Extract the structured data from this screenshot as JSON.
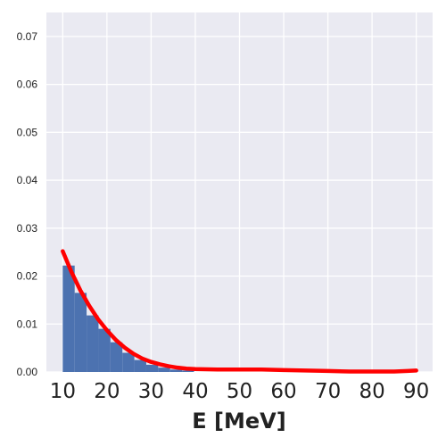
{
  "chart_data": {
    "type": "bar",
    "title": "",
    "xlabel": "E [MeV]",
    "ylabel": "",
    "xlim": [
      6.3,
      93.7
    ],
    "ylim": [
      0,
      0.075
    ],
    "grid": true,
    "background": "#EAEAF2",
    "gridColor": "#FFFFFF",
    "xticks": [
      "10",
      "20",
      "30",
      "40",
      "50",
      "60",
      "70",
      "80",
      "90"
    ],
    "yticks": [
      "0.00",
      "0.01",
      "0.02",
      "0.03",
      "0.04",
      "0.05",
      "0.06",
      "0.07"
    ],
    "histogram": {
      "color": "#4C72B0",
      "bins": [
        {
          "x0": 10.0,
          "x1": 12.7,
          "value": 0.0222
        },
        {
          "x0": 12.7,
          "x1": 15.4,
          "value": 0.0165
        },
        {
          "x0": 15.4,
          "x1": 18.1,
          "value": 0.0118
        },
        {
          "x0": 18.1,
          "x1": 20.8,
          "value": 0.009
        },
        {
          "x0": 20.8,
          "x1": 23.5,
          "value": 0.0062
        },
        {
          "x0": 23.5,
          "x1": 26.2,
          "value": 0.004
        },
        {
          "x0": 26.2,
          "x1": 28.9,
          "value": 0.0025
        },
        {
          "x0": 28.9,
          "x1": 31.6,
          "value": 0.0015
        },
        {
          "x0": 31.6,
          "x1": 34.3,
          "value": 0.0009
        },
        {
          "x0": 34.3,
          "x1": 37.0,
          "value": 0.0005
        },
        {
          "x0": 37.0,
          "x1": 39.7,
          "value": 0.0003
        }
      ]
    },
    "curve": {
      "color": "#FF0000",
      "points": [
        [
          10,
          0.0252
        ],
        [
          12,
          0.0208
        ],
        [
          14,
          0.017
        ],
        [
          16,
          0.0138
        ],
        [
          18,
          0.011
        ],
        [
          20,
          0.0087
        ],
        [
          22,
          0.0067
        ],
        [
          24,
          0.0051
        ],
        [
          26,
          0.0038
        ],
        [
          28,
          0.0028
        ],
        [
          30,
          0.0021
        ],
        [
          32,
          0.0016
        ],
        [
          34,
          0.0012
        ],
        [
          36,
          0.0009
        ],
        [
          38,
          0.0007
        ],
        [
          40,
          0.0006
        ],
        [
          45,
          0.0005
        ],
        [
          50,
          0.0005
        ],
        [
          55,
          0.0005
        ],
        [
          60,
          0.0004
        ],
        [
          65,
          0.0003
        ],
        [
          70,
          0.0002
        ],
        [
          75,
          0.0001
        ],
        [
          80,
          0.0001
        ],
        [
          85,
          0.0001
        ],
        [
          88,
          0.0002
        ],
        [
          90,
          0.0003
        ]
      ]
    }
  }
}
